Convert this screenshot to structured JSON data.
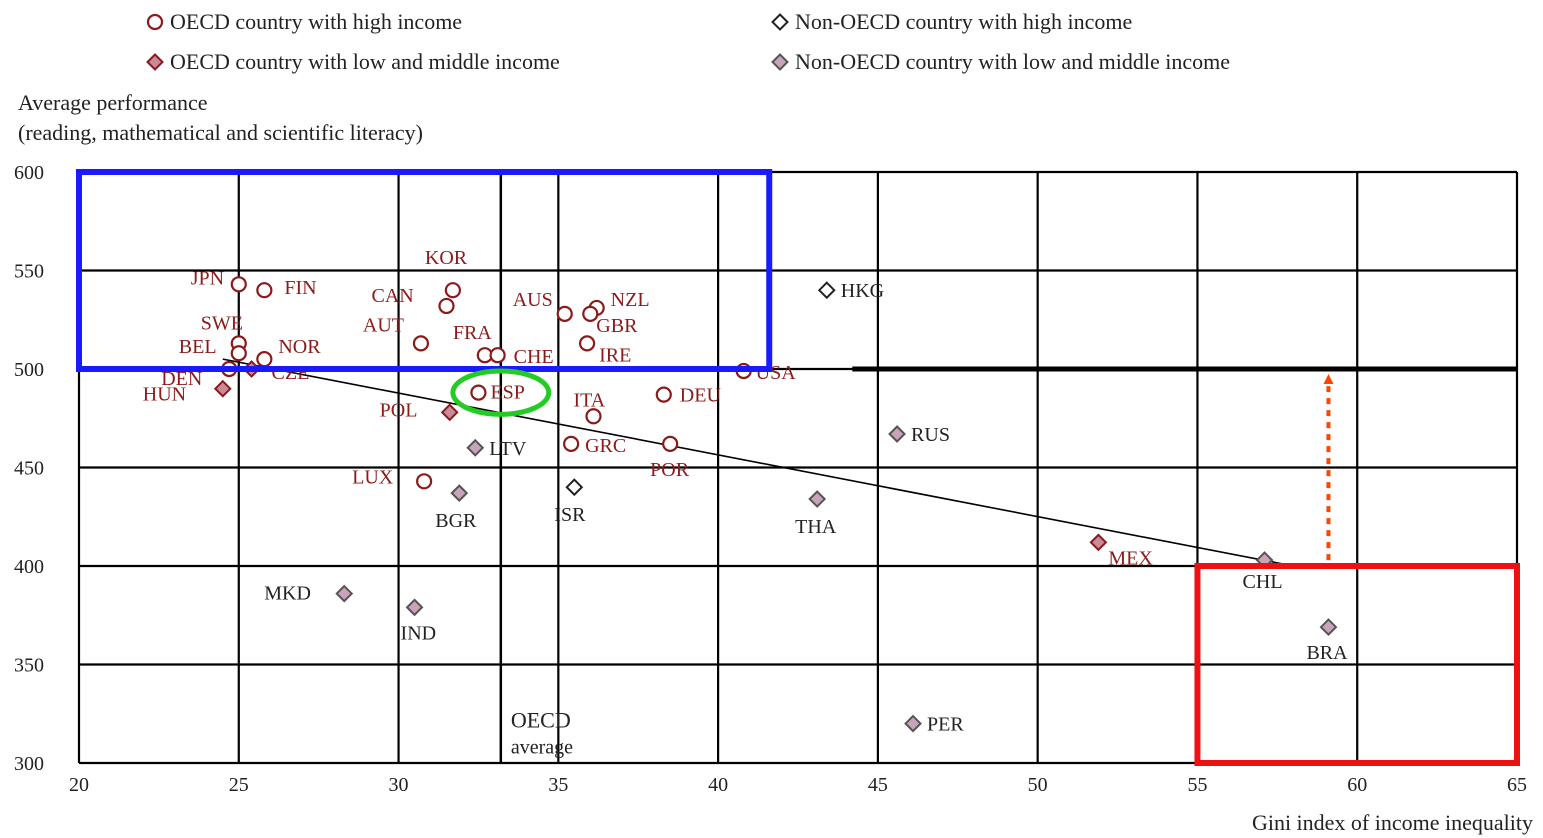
{
  "chart_data": {
    "type": "scatter",
    "ylabel_lines": [
      "Average performance",
      "(reading, mathematical and scientific literacy)"
    ],
    "xlabel": "Gini index of income inequality",
    "xlim": [
      20,
      65
    ],
    "ylim": [
      300,
      600
    ],
    "x_ticks": [
      "20",
      "25",
      "30",
      "35",
      "40",
      "45",
      "50",
      "55",
      "60",
      "65"
    ],
    "y_ticks": [
      "300",
      "350",
      "400",
      "450",
      "500",
      "550",
      "600"
    ],
    "grid": true,
    "legend_placement": "top",
    "legend": [
      {
        "key": "oecd_high",
        "label": "OECD country with high income"
      },
      {
        "key": "non_oecd_high",
        "label": "Non-OECD country with high income"
      },
      {
        "key": "oecd_low",
        "label": "OECD country with low and middle income"
      },
      {
        "key": "non_oecd_low",
        "label": "Non-OECD country with low and middle income"
      }
    ],
    "categories": {
      "oecd_high": {
        "shape": "circle",
        "stroke": "#8b1a1a",
        "fill": "#ffffff",
        "text": "#8b1a1a"
      },
      "non_oecd_high": {
        "shape": "diamond",
        "stroke": "#222222",
        "fill": "#ffffff",
        "text": "#222222"
      },
      "oecd_low": {
        "shape": "diamond",
        "stroke": "#8b1a1a",
        "fill": "#c98a9a",
        "text": "#8b1a1a"
      },
      "non_oecd_low": {
        "shape": "diamond",
        "stroke": "#555555",
        "fill": "#c9a3ba",
        "text": "#222222"
      }
    },
    "points": [
      {
        "label": "JPN",
        "x": 25.0,
        "y": 543,
        "cat": "oecd_high"
      },
      {
        "label": "FIN",
        "x": 25.8,
        "y": 540,
        "cat": "oecd_high"
      },
      {
        "label": "KOR",
        "x": 31.7,
        "y": 540,
        "cat": "oecd_high"
      },
      {
        "label": "CAN",
        "x": 31.5,
        "y": 532,
        "cat": "oecd_high"
      },
      {
        "label": "AUS",
        "x": 35.2,
        "y": 528,
        "cat": "oecd_high"
      },
      {
        "label": "NZL",
        "x": 36.2,
        "y": 531,
        "cat": "oecd_high"
      },
      {
        "label": "GBR",
        "x": 36.0,
        "y": 528,
        "cat": "oecd_high"
      },
      {
        "label": "AUT",
        "x": 30.7,
        "y": 513,
        "cat": "oecd_high"
      },
      {
        "label": "FRA",
        "x": 32.7,
        "y": 507,
        "cat": "oecd_high"
      },
      {
        "label": "CHE",
        "x": 33.1,
        "y": 507,
        "cat": "oecd_high"
      },
      {
        "label": "IRE",
        "x": 35.9,
        "y": 513,
        "cat": "oecd_high"
      },
      {
        "label": "SWE",
        "x": 25.0,
        "y": 513,
        "cat": "oecd_high"
      },
      {
        "label": "BEL",
        "x": 25.0,
        "y": 508,
        "cat": "oecd_high"
      },
      {
        "label": "NOR",
        "x": 25.8,
        "y": 505,
        "cat": "oecd_high"
      },
      {
        "label": "DEN",
        "x": 24.7,
        "y": 500,
        "cat": "oecd_high"
      },
      {
        "label": "USA",
        "x": 40.8,
        "y": 499,
        "cat": "oecd_high"
      },
      {
        "label": "ESP",
        "x": 32.5,
        "y": 488,
        "cat": "oecd_high"
      },
      {
        "label": "DEU",
        "x": 38.3,
        "y": 487,
        "cat": "oecd_high"
      },
      {
        "label": "ITA",
        "x": 36.1,
        "y": 476,
        "cat": "oecd_high"
      },
      {
        "label": "GRC",
        "x": 35.4,
        "y": 462,
        "cat": "oecd_high"
      },
      {
        "label": "POR",
        "x": 38.5,
        "y": 462,
        "cat": "oecd_high"
      },
      {
        "label": "LUX",
        "x": 30.8,
        "y": 443,
        "cat": "oecd_high"
      },
      {
        "label": "HUN",
        "x": 24.5,
        "y": 490,
        "cat": "oecd_low"
      },
      {
        "label": "CZE",
        "x": 25.4,
        "y": 500,
        "cat": "oecd_low"
      },
      {
        "label": "POL",
        "x": 31.6,
        "y": 478,
        "cat": "oecd_low"
      },
      {
        "label": "MEX",
        "x": 51.9,
        "y": 412,
        "cat": "oecd_low"
      },
      {
        "label": "HKG",
        "x": 43.4,
        "y": 540,
        "cat": "non_oecd_high"
      },
      {
        "label": "ISR",
        "x": 35.5,
        "y": 440,
        "cat": "non_oecd_high"
      },
      {
        "label": "LTV",
        "x": 32.4,
        "y": 460,
        "cat": "non_oecd_low"
      },
      {
        "label": "BGR",
        "x": 31.9,
        "y": 437,
        "cat": "non_oecd_low"
      },
      {
        "label": "RUS",
        "x": 45.6,
        "y": 467,
        "cat": "non_oecd_low"
      },
      {
        "label": "THA",
        "x": 43.1,
        "y": 434,
        "cat": "non_oecd_low"
      },
      {
        "label": "CHL",
        "x": 57.1,
        "y": 403,
        "cat": "non_oecd_low"
      },
      {
        "label": "BRA",
        "x": 59.1,
        "y": 369,
        "cat": "non_oecd_low"
      },
      {
        "label": "MKD",
        "x": 28.3,
        "y": 386,
        "cat": "non_oecd_low"
      },
      {
        "label": "IND",
        "x": 30.5,
        "y": 379,
        "cat": "non_oecd_low"
      },
      {
        "label": "PER",
        "x": 46.1,
        "y": 320,
        "cat": "non_oecd_low"
      }
    ],
    "trend_line": {
      "x1": 24.5,
      "y1": 505,
      "x2": 58.0,
      "y2": 400
    },
    "oecd_average": {
      "x": 33.2,
      "y": 500,
      "label_lines": [
        "OECD",
        "average"
      ]
    },
    "highlights": [
      {
        "shape": "rect",
        "color": "#1a1aff",
        "x1": 20,
        "y1": 500,
        "x2": 41.6,
        "y2": 600
      },
      {
        "shape": "rect",
        "color": "#ee1111",
        "x1": 55,
        "y1": 300,
        "x2": 65,
        "y2": 400
      },
      {
        "shape": "ellipse",
        "color": "#22cc22",
        "cx": 33.2,
        "cy": 488,
        "rx": 1.5,
        "ry": 11
      },
      {
        "shape": "arrow",
        "color": "#ff4400",
        "x": 59.1,
        "y_from": 403,
        "y_to": 500
      }
    ]
  }
}
